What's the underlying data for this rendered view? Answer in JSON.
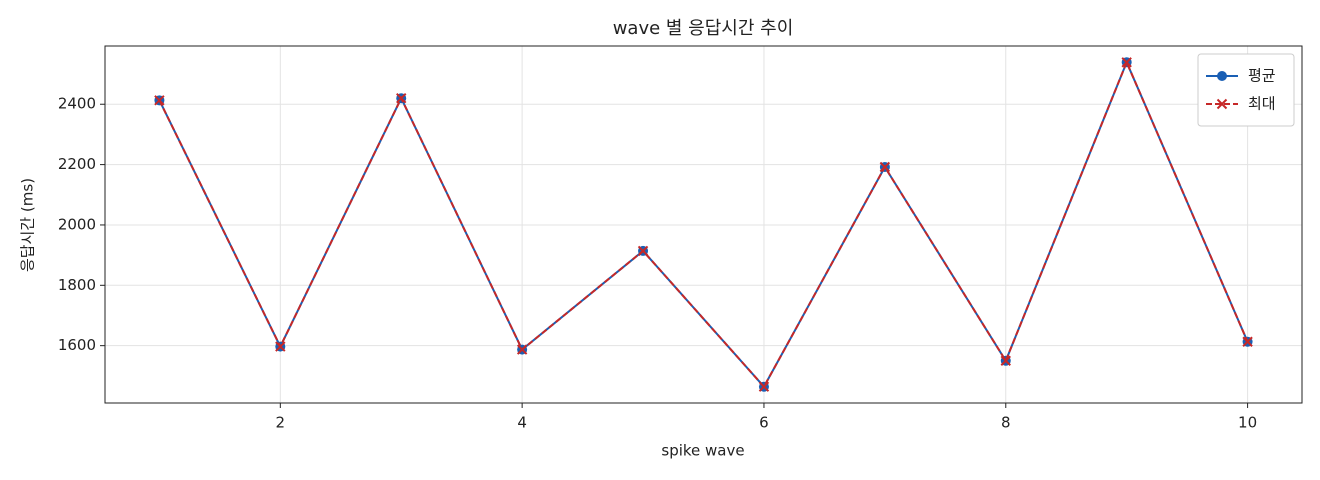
{
  "chart_data": {
    "type": "line",
    "title": "wave 별 응답시간 추이",
    "x_label": "spike wave",
    "y_label": "응답시간 (ms)",
    "x": [
      1,
      2,
      3,
      4,
      5,
      6,
      7,
      8,
      9,
      10
    ],
    "series": [
      {
        "name": "평균",
        "color": "#1a5fb4",
        "line_style": "solid",
        "marker": "circle",
        "values": [
          2413,
          1597,
          2420,
          1587,
          1914,
          1464,
          2192,
          1550,
          2539,
          1613
        ]
      },
      {
        "name": "최대",
        "color": "#c62828",
        "line_style": "dashed",
        "marker": "x",
        "values": [
          2413,
          1597,
          2420,
          1587,
          1914,
          1464,
          2192,
          1550,
          2539,
          1613
        ]
      }
    ],
    "xlim": [
      0.55,
      10.45
    ],
    "xticks": [
      2,
      4,
      6,
      8,
      10
    ],
    "ylim": [
      1410,
      2593
    ],
    "yticks": [
      1600,
      1800,
      2000,
      2200,
      2400
    ],
    "grid": true,
    "legend": "upper-right"
  }
}
